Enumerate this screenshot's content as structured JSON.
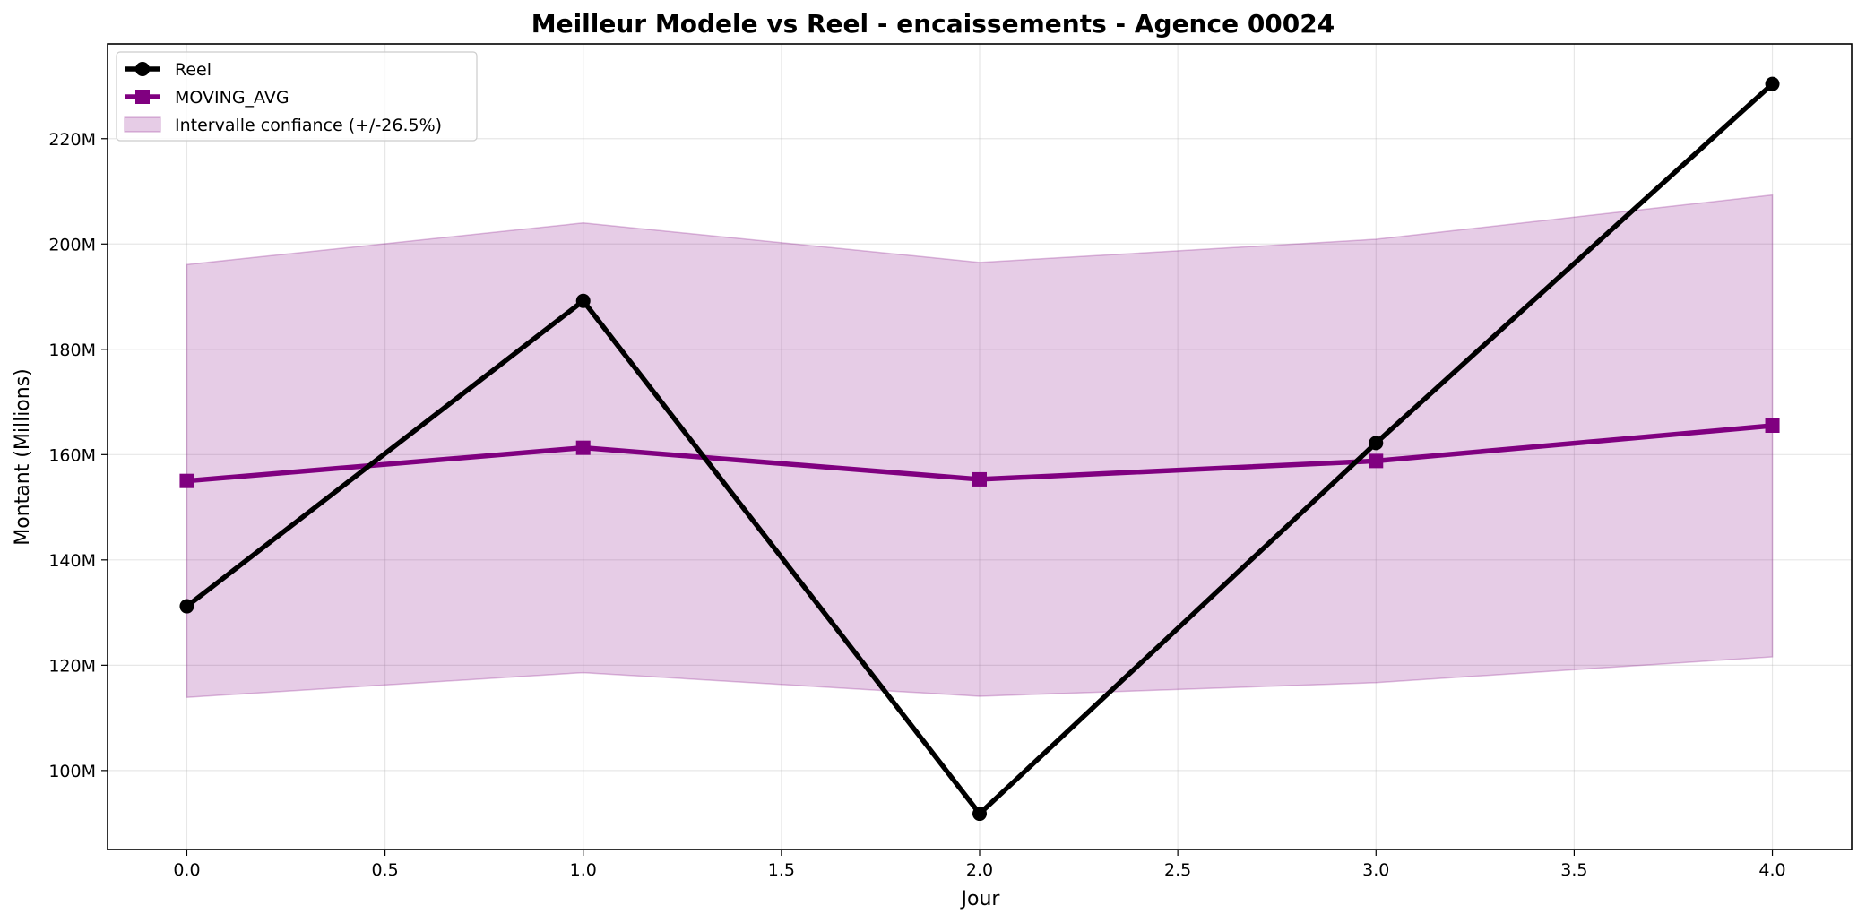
{
  "chart_data": {
    "type": "line",
    "title": "Meilleur Modele vs Reel - encaissements - Agence 00024",
    "xlabel": "Jour",
    "ylabel": "Montant (Millions)",
    "x": [
      0.0,
      1.0,
      2.0,
      3.0,
      4.0
    ],
    "xlim": [
      -0.2,
      4.2
    ],
    "ylim": [
      85,
      238
    ],
    "x_ticks": [
      0.0,
      0.5,
      1.0,
      1.5,
      2.0,
      2.5,
      3.0,
      3.5,
      4.0
    ],
    "x_tick_labels": [
      "0.0",
      "0.5",
      "1.0",
      "1.5",
      "2.0",
      "2.5",
      "3.0",
      "3.5",
      "4.0"
    ],
    "y_ticks": [
      100,
      120,
      140,
      160,
      180,
      200,
      220
    ],
    "y_tick_labels": [
      "100M",
      "120M",
      "140M",
      "160M",
      "180M",
      "200M",
      "220M"
    ],
    "grid": true,
    "legend_position": "top-left",
    "series": [
      {
        "name": "Reel",
        "values": [
          131.2,
          189.2,
          91.8,
          162.2,
          230.4
        ],
        "color": "#000000",
        "marker": "circle"
      },
      {
        "name": "MOVING_AVG",
        "values": [
          155.0,
          161.3,
          155.3,
          158.8,
          165.5
        ],
        "color": "#800080",
        "marker": "square"
      }
    ],
    "band": {
      "name": "Intervalle confiance (+/-26.5%)",
      "upper": [
        196.1,
        204.0,
        196.5,
        200.9,
        209.3
      ],
      "lower": [
        113.9,
        118.6,
        114.1,
        116.7,
        121.6
      ],
      "color": "#800080"
    }
  }
}
